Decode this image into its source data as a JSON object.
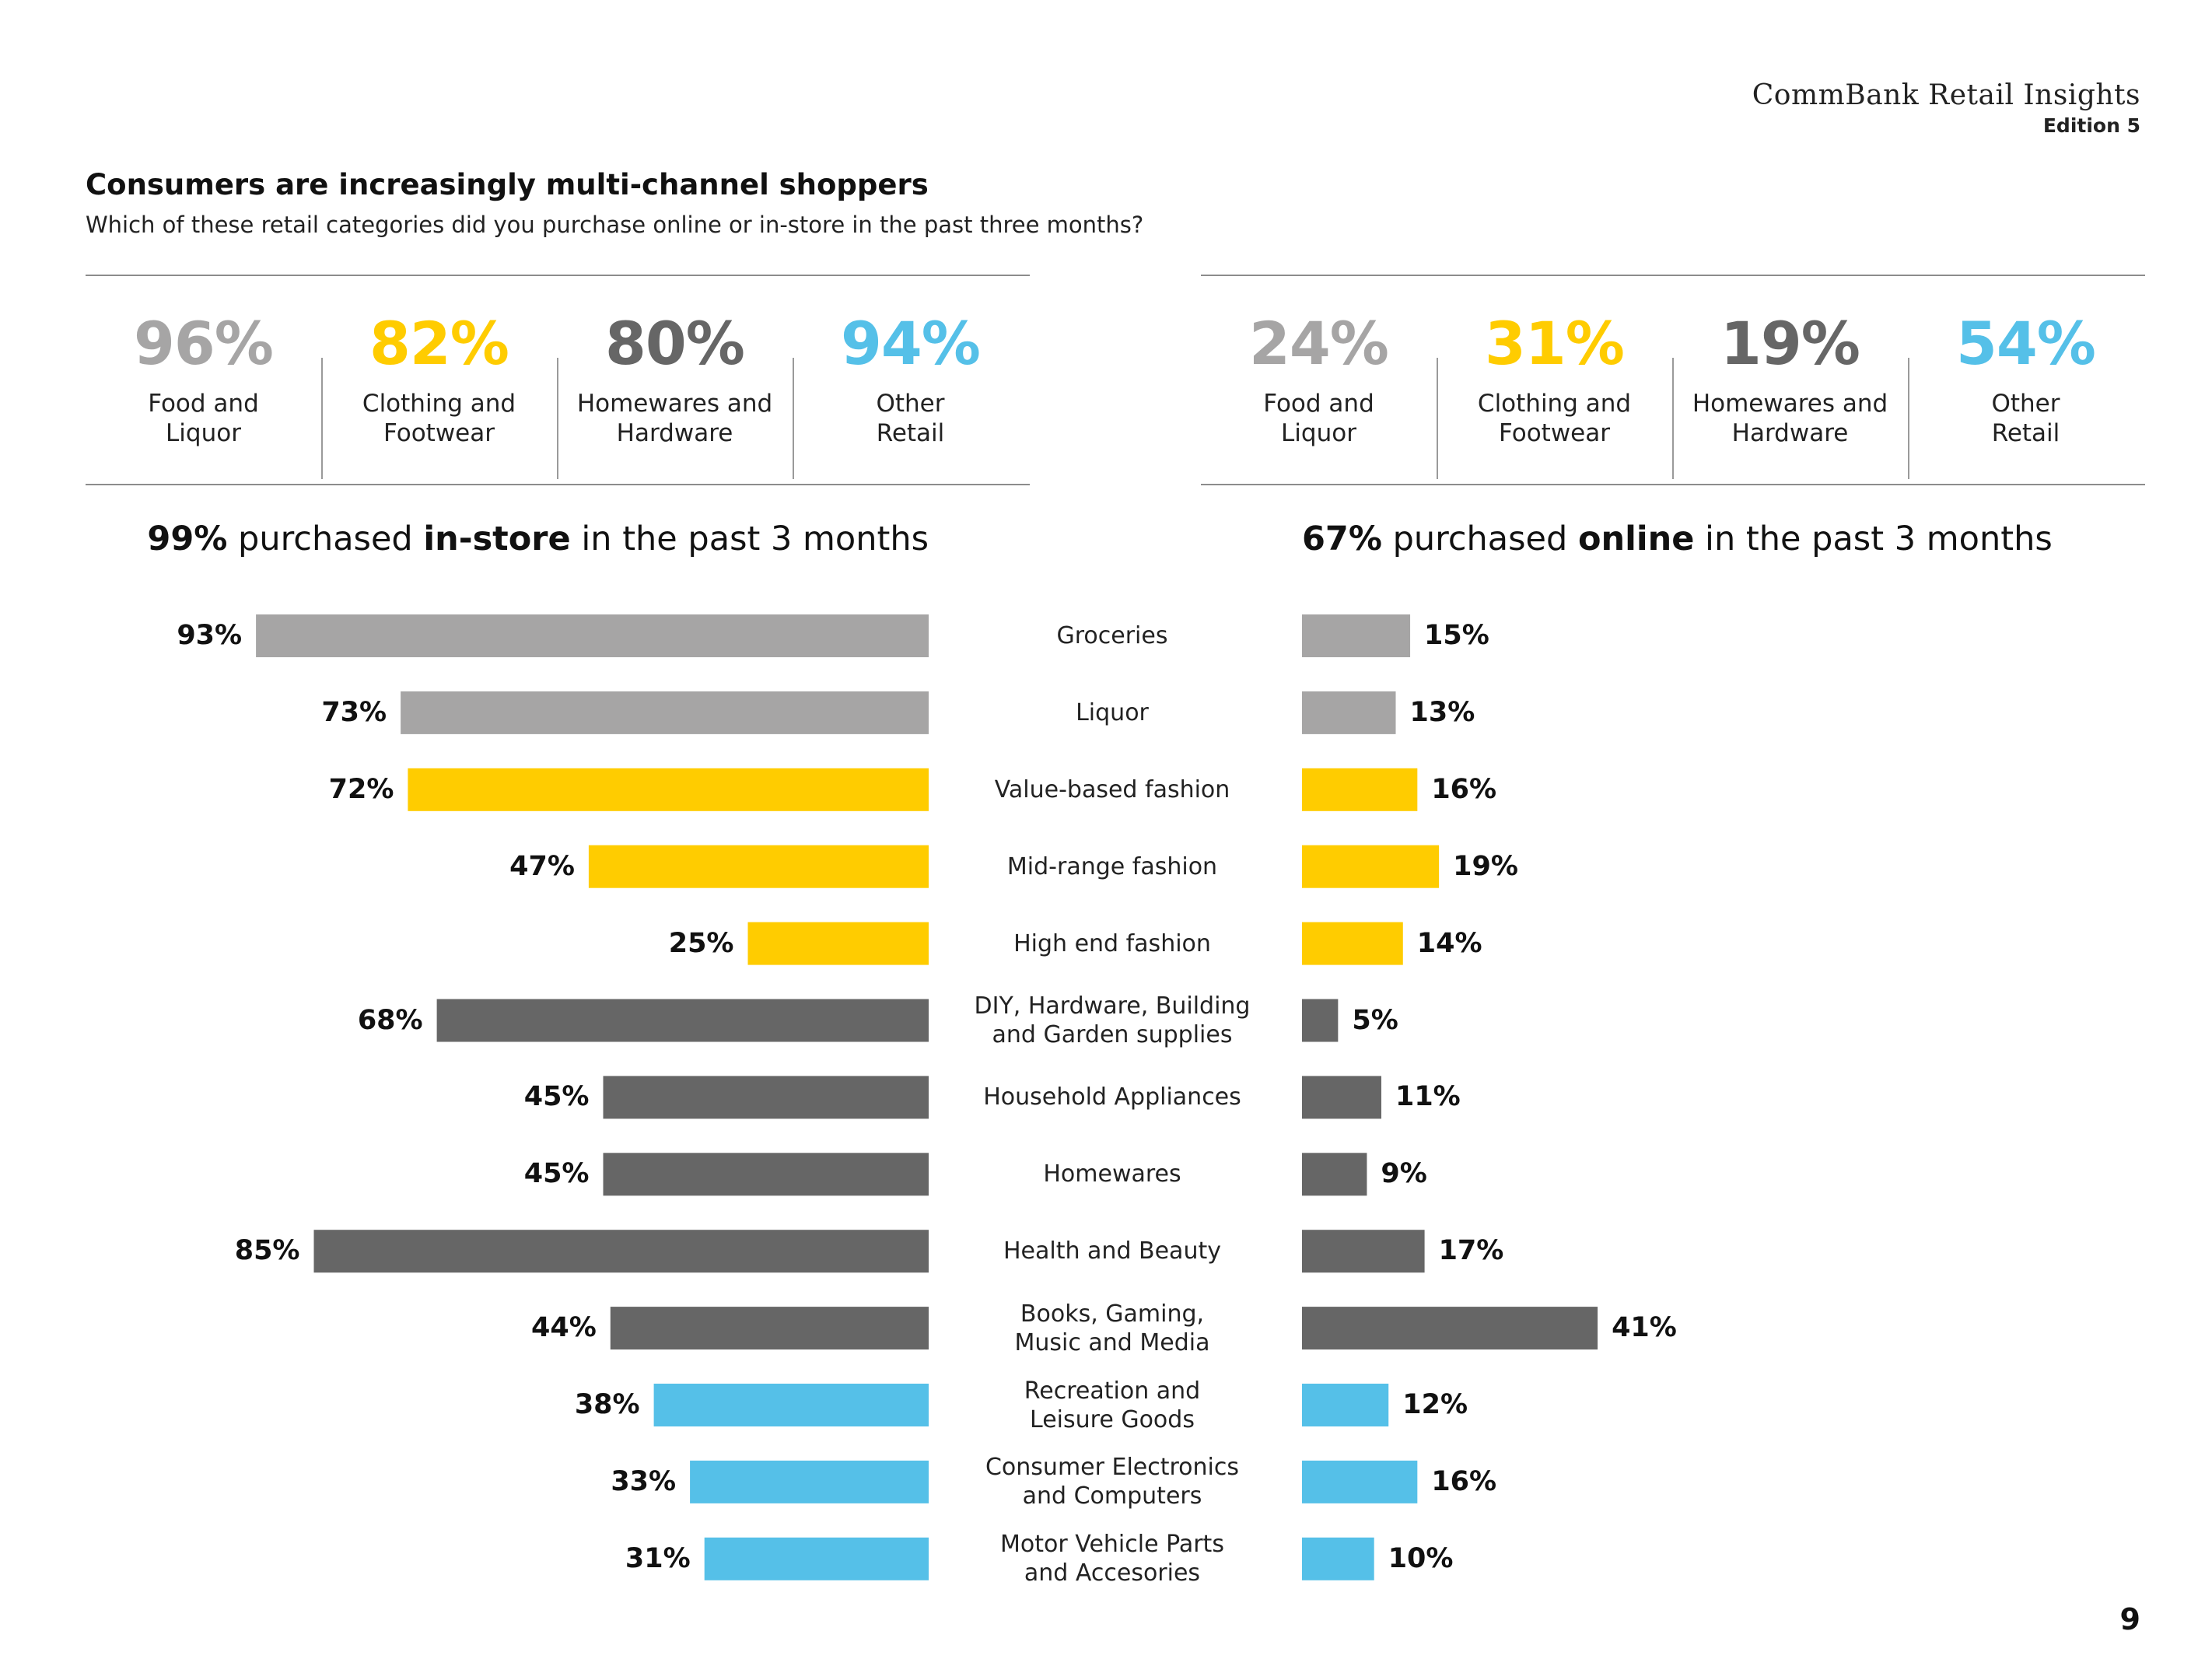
{
  "brand": {
    "title": "CommBank Retail Insights",
    "edition": "Edition 5"
  },
  "title": "Consumers are increasingly multi-channel shoppers",
  "subtitle": "Which of these retail categories did you purchase online or in-store in the past three months?",
  "page_number": "9",
  "colors": {
    "food": "#a6a5a5",
    "clothing": "#ffcc00",
    "homewares": "#666666",
    "other": "#55c0e8"
  },
  "instore_summary": [
    {
      "value": "96%",
      "label": "Food and\nLiquor",
      "group": "food"
    },
    {
      "value": "82%",
      "label": "Clothing and\nFootwear",
      "group": "clothing"
    },
    {
      "value": "80%",
      "label": "Homewares and\nHardware",
      "group": "homewares"
    },
    {
      "value": "94%",
      "label": "Other\nRetail",
      "group": "other"
    }
  ],
  "online_summary": [
    {
      "value": "24%",
      "label": "Food and\nLiquor",
      "group": "food"
    },
    {
      "value": "31%",
      "label": "Clothing and\nFootwear",
      "group": "clothing"
    },
    {
      "value": "19%",
      "label": "Homewares and\nHardware",
      "group": "homewares"
    },
    {
      "value": "54%",
      "label": "Other\nRetail",
      "group": "other"
    }
  ],
  "instore_heading": {
    "pct": "99%",
    "pre": " purchased ",
    "bold": "in-store",
    "post": " in the past 3 months"
  },
  "online_heading": {
    "pct": "67%",
    "pre": " purchased ",
    "bold": "online",
    "post": " in the past 3 months"
  },
  "chart_data": {
    "type": "bar",
    "orientation": "horizontal",
    "categories": [
      "Groceries",
      "Liquor",
      "Value-based fashion",
      "Mid-range fashion",
      "High end fashion",
      "DIY, Hardware, Building\nand Garden supplies",
      "Household Appliances",
      "Homewares",
      "Health and Beauty",
      "Books, Gaming,\nMusic and Media",
      "Recreation and\nLeisure Goods",
      "Consumer Electronics\nand Computers",
      "Motor Vehicle Parts\nand Accesories"
    ],
    "category_groups": [
      "food",
      "food",
      "clothing",
      "clothing",
      "clothing",
      "homewares",
      "homewares",
      "homewares",
      "homewares",
      "homewares",
      "other",
      "other",
      "other"
    ],
    "series": [
      {
        "name": "In-store",
        "values": [
          93,
          73,
          72,
          47,
          25,
          68,
          45,
          45,
          85,
          44,
          38,
          33,
          31
        ]
      },
      {
        "name": "Online",
        "values": [
          15,
          13,
          16,
          19,
          14,
          5,
          11,
          9,
          17,
          41,
          12,
          16,
          10
        ]
      }
    ],
    "unit": "%",
    "xlim": [
      0,
      100
    ]
  }
}
